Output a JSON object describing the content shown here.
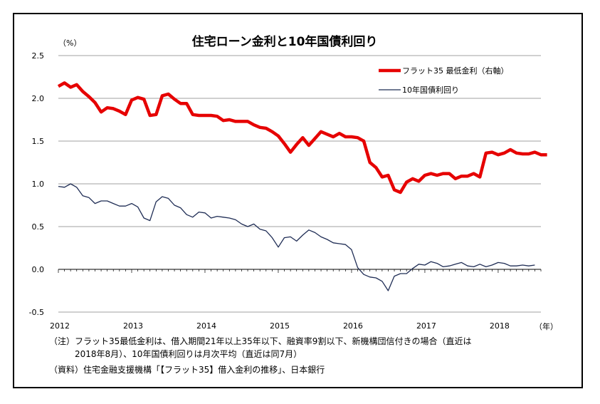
{
  "chart_data": {
    "type": "line",
    "title": "住宅ローン金利と10年国債利回り",
    "y_unit": "（%）",
    "x_unit": "（年）",
    "ylim": [
      -0.5,
      2.5
    ],
    "yticks": [
      "-0.5",
      "0.0",
      "0.5",
      "1.0",
      "1.5",
      "2.0",
      "2.5"
    ],
    "ytick_values": [
      -0.5,
      0.0,
      0.5,
      1.0,
      1.5,
      2.0,
      2.5
    ],
    "xlim": [
      2012.0,
      2018.5833
    ],
    "xticks": [
      "2012",
      "2013",
      "2014",
      "2015",
      "2016",
      "2017",
      "2018"
    ],
    "xtick_values": [
      2012,
      2013,
      2014,
      2015,
      2016,
      2017,
      2018
    ],
    "grid": true,
    "legend_position": "top-right",
    "series": [
      {
        "name": "フラット35 最低金利（右軸）",
        "color": "#e60000",
        "x_start": 2012.0,
        "step": 0.083333,
        "values": [
          2.14,
          2.18,
          2.13,
          2.16,
          2.08,
          2.02,
          1.95,
          1.84,
          1.89,
          1.88,
          1.85,
          1.81,
          1.98,
          2.01,
          1.99,
          1.8,
          1.81,
          2.03,
          2.05,
          1.99,
          1.94,
          1.94,
          1.81,
          1.8,
          1.8,
          1.8,
          1.79,
          1.74,
          1.75,
          1.73,
          1.73,
          1.73,
          1.69,
          1.66,
          1.65,
          1.61,
          1.56,
          1.47,
          1.37,
          1.46,
          1.54,
          1.45,
          1.53,
          1.61,
          1.58,
          1.55,
          1.59,
          1.55,
          1.55,
          1.54,
          1.5,
          1.25,
          1.19,
          1.08,
          1.1,
          0.93,
          0.9,
          1.02,
          1.06,
          1.03,
          1.1,
          1.12,
          1.1,
          1.12,
          1.12,
          1.06,
          1.09,
          1.09,
          1.12,
          1.08,
          1.36,
          1.37,
          1.34,
          1.36,
          1.4,
          1.36,
          1.35,
          1.35,
          1.37,
          1.34,
          1.34
        ]
      },
      {
        "name": "10年国債利回り",
        "color": "#1f2d55",
        "x_start": 2012.0,
        "step": 0.083333,
        "values": [
          0.97,
          0.96,
          1.0,
          0.96,
          0.86,
          0.84,
          0.77,
          0.8,
          0.8,
          0.77,
          0.74,
          0.74,
          0.77,
          0.73,
          0.6,
          0.57,
          0.79,
          0.85,
          0.83,
          0.75,
          0.72,
          0.64,
          0.61,
          0.67,
          0.66,
          0.6,
          0.62,
          0.61,
          0.6,
          0.58,
          0.53,
          0.5,
          0.53,
          0.47,
          0.45,
          0.37,
          0.26,
          0.37,
          0.38,
          0.33,
          0.4,
          0.46,
          0.43,
          0.38,
          0.35,
          0.31,
          0.3,
          0.29,
          0.23,
          0.02,
          -0.06,
          -0.09,
          -0.1,
          -0.14,
          -0.25,
          -0.08,
          -0.05,
          -0.05,
          0.01,
          0.06,
          0.05,
          0.09,
          0.07,
          0.03,
          0.04,
          0.06,
          0.08,
          0.04,
          0.03,
          0.06,
          0.03,
          0.05,
          0.08,
          0.07,
          0.04,
          0.04,
          0.05,
          0.04,
          0.05
        ]
      }
    ]
  },
  "notes": {
    "line1": "（注）フラット35最低金利は、借入期間21年以上35年以下、融資率9割以下、新機構団信付きの場合（直近は",
    "line2": "2018年8月）、10年国債利回りは月次平均（直近は同7月）",
    "line3": "（資料）住宅金融支援機構「【フラット35】借入金利の推移」、日本銀行"
  }
}
